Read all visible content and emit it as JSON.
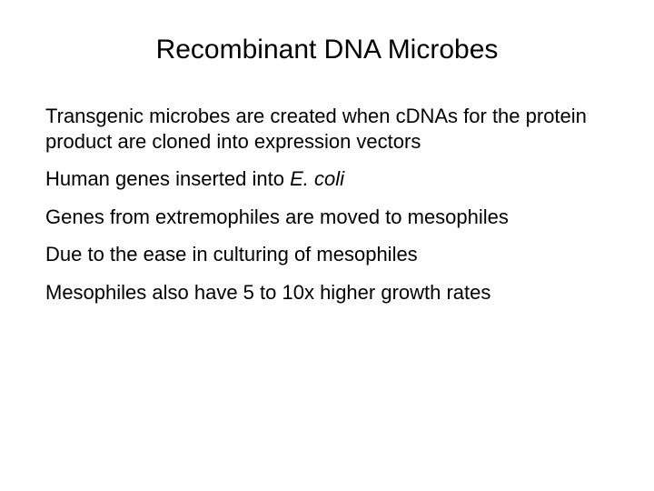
{
  "slide": {
    "title": "Recombinant DNA Microbes",
    "title_fontsize": 30,
    "body_fontsize": 22,
    "background_color": "#ffffff",
    "text_color": "#000000",
    "bullets": [
      {
        "text_before": "Transgenic microbes are created when cDNAs for the protein product are cloned into expression vectors",
        "italic": "",
        "text_after": ""
      },
      {
        "text_before": "Human genes inserted into ",
        "italic": "E. coli",
        "text_after": ""
      },
      {
        "text_before": "Genes from extremophiles are moved to mesophiles",
        "italic": "",
        "text_after": ""
      },
      {
        "text_before": "Due to the ease in culturing of mesophiles",
        "italic": "",
        "text_after": ""
      },
      {
        "text_before": "Mesophiles also have 5 to 10x higher growth rates",
        "italic": "",
        "text_after": ""
      }
    ]
  }
}
